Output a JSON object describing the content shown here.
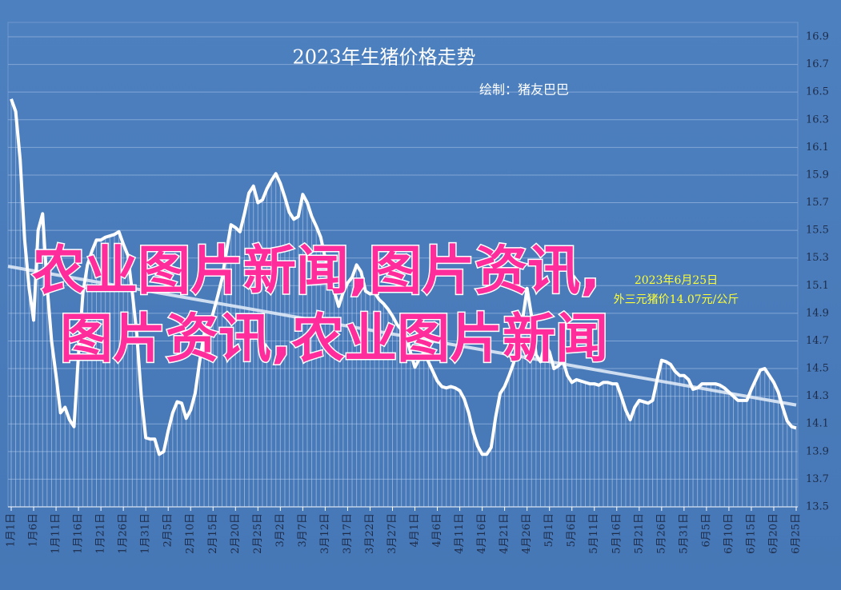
{
  "chart_data": {
    "type": "line",
    "title": "2023年生猪价格走势",
    "subtitle": "绘制：猪友巴巴",
    "annotations": [
      "2023年6月25日",
      "外三元猪价14.07元/公斤"
    ],
    "watermark": [
      "农业图片新闻,图片资讯,",
      "图片资讯,农业图片新闻"
    ],
    "color": "#ffffff",
    "grid": true,
    "trendline": true,
    "ylim": [
      13.5,
      16.9
    ],
    "yticks": [
      13.5,
      13.7,
      13.9,
      14.1,
      14.3,
      14.5,
      14.7,
      14.9,
      15.1,
      15.3,
      15.5,
      15.7,
      15.9,
      16.1,
      16.3,
      16.5,
      16.7,
      16.9
    ],
    "categories": [
      "1月1日",
      null,
      null,
      null,
      null,
      "1月6日",
      null,
      null,
      null,
      null,
      "1月11日",
      null,
      null,
      null,
      null,
      "1月16日",
      null,
      null,
      null,
      null,
      "1月21日",
      null,
      null,
      null,
      null,
      "1月26日",
      null,
      null,
      null,
      null,
      "1月31日",
      null,
      null,
      null,
      null,
      "2月5日",
      null,
      null,
      null,
      null,
      "2月10日",
      null,
      null,
      null,
      null,
      "2月15日",
      null,
      null,
      null,
      null,
      "2月20日",
      null,
      null,
      null,
      null,
      "2月25日",
      null,
      null,
      null,
      null,
      "3月2日",
      null,
      null,
      null,
      null,
      "3月7日",
      null,
      null,
      null,
      null,
      "3月12日",
      null,
      null,
      null,
      null,
      "3月17日",
      null,
      null,
      null,
      null,
      "3月22日",
      null,
      null,
      null,
      null,
      "3月27日",
      null,
      null,
      null,
      null,
      "4月1日",
      null,
      null,
      null,
      null,
      "4月6日",
      null,
      null,
      null,
      null,
      "4月11日",
      null,
      null,
      null,
      null,
      "4月16日",
      null,
      null,
      null,
      null,
      "4月21日",
      null,
      null,
      null,
      null,
      "4月26日",
      null,
      null,
      null,
      null,
      "5月1日",
      null,
      null,
      null,
      null,
      "5月6日",
      null,
      null,
      null,
      null,
      "5月11日",
      null,
      null,
      null,
      null,
      "5月16日",
      null,
      null,
      null,
      null,
      "5月21日",
      null,
      null,
      null,
      null,
      "5月26日",
      null,
      null,
      null,
      null,
      "5月31日",
      null,
      null,
      null,
      null,
      "6月5日",
      null,
      null,
      null,
      null,
      "6月10日",
      null,
      null,
      null,
      null,
      "6月15日",
      null,
      null,
      null,
      null,
      "6月20日",
      null,
      null,
      null,
      null,
      "6月25日"
    ],
    "values": [
      16.45,
      16.36,
      16.01,
      15.43,
      15.08,
      14.85,
      15.5,
      15.62,
      15.1,
      14.7,
      14.45,
      14.18,
      14.22,
      14.13,
      14.08,
      14.6,
      15.05,
      15.25,
      15.35,
      15.43,
      15.43,
      15.45,
      15.46,
      15.47,
      15.49,
      15.4,
      15.32,
      15.05,
      14.75,
      14.3,
      14.0,
      13.99,
      13.99,
      13.88,
      13.9,
      14.05,
      14.18,
      14.26,
      14.25,
      14.14,
      14.2,
      14.32,
      14.55,
      14.75,
      14.8,
      14.9,
      15.02,
      15.15,
      15.35,
      15.54,
      15.52,
      15.49,
      15.62,
      15.77,
      15.82,
      15.7,
      15.72,
      15.8,
      15.86,
      15.91,
      15.84,
      15.74,
      15.63,
      15.58,
      15.6,
      15.76,
      15.7,
      15.6,
      15.53,
      15.45,
      15.3,
      15.18,
      15.06,
      14.95,
      15.05,
      15.12,
      15.16,
      15.25,
      15.2,
      15.06,
      15.04,
      15.05,
      15.0,
      14.97,
      14.93,
      14.88,
      14.82,
      14.78,
      14.75,
      14.62,
      14.51,
      14.57,
      14.62,
      14.55,
      14.48,
      14.41,
      14.37,
      14.36,
      14.37,
      14.36,
      14.34,
      14.28,
      14.18,
      14.04,
      13.94,
      13.88,
      13.88,
      13.93,
      14.15,
      14.32,
      14.37,
      14.45,
      14.54,
      14.7,
      14.85,
      15.08,
      14.88,
      14.6,
      14.55,
      14.68,
      14.62,
      14.5,
      14.52,
      14.56,
      14.45,
      14.4,
      14.42,
      14.41,
      14.4,
      14.39,
      14.39,
      14.38,
      14.4,
      14.4,
      14.39,
      14.39,
      14.3,
      14.2,
      14.13,
      14.22,
      14.27,
      14.26,
      14.25,
      14.27,
      14.42,
      14.56,
      14.55,
      14.53,
      14.48,
      14.45,
      14.45,
      14.42,
      14.35,
      14.36,
      14.39,
      14.39,
      14.39,
      14.39,
      14.38,
      14.36,
      14.33,
      14.3,
      14.27,
      14.27,
      14.27,
      14.35,
      14.42,
      14.49,
      14.5,
      14.45,
      14.4,
      14.33,
      14.22,
      14.12,
      14.08,
      14.07
    ]
  }
}
